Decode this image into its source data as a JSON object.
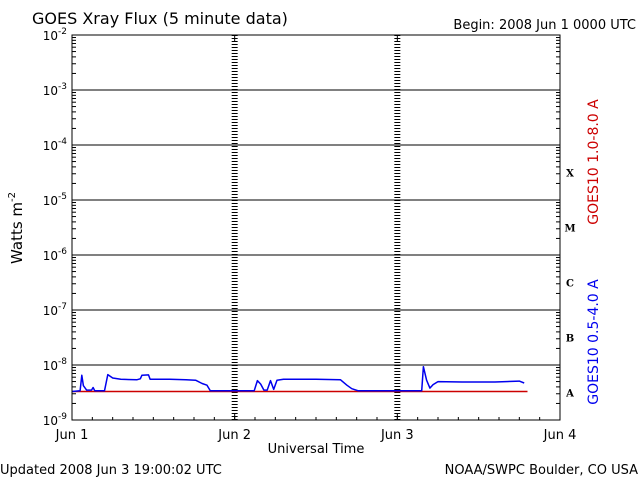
{
  "header": {
    "title": "GOES Xray Flux (5 minute data)",
    "begin": "Begin:  2008 Jun 1 0000 UTC"
  },
  "footer": {
    "updated": "Updated 2008 Jun  3 19:00:02 UTC",
    "source": "NOAA/SWPC Boulder, CO USA"
  },
  "chart_data": {
    "type": "line",
    "title": "GOES Xray Flux (5 minute data)",
    "xlabel": "Universal Time",
    "ylabel": "Watts m",
    "ylabel_sup": "-2",
    "yscale": "log",
    "ylim": [
      1e-09,
      0.01
    ],
    "xlim": [
      0,
      3
    ],
    "x_unit": "days since 2008 Jun 1 0000 UTC",
    "x_ticks": [
      {
        "x": 0,
        "label": "Jun 1"
      },
      {
        "x": 1,
        "label": "Jun 2"
      },
      {
        "x": 2,
        "label": "Jun 3"
      },
      {
        "x": 3,
        "label": "Jun 4"
      }
    ],
    "y_ticks": [
      {
        "exp": -2,
        "base": "10",
        "sup": "-2"
      },
      {
        "exp": -3,
        "base": "10",
        "sup": "-3"
      },
      {
        "exp": -4,
        "base": "10",
        "sup": "-4"
      },
      {
        "exp": -5,
        "base": "10",
        "sup": "-5"
      },
      {
        "exp": -6,
        "base": "10",
        "sup": "-6"
      },
      {
        "exp": -7,
        "base": "10",
        "sup": "-7"
      },
      {
        "exp": -8,
        "base": "10",
        "sup": "-8"
      },
      {
        "exp": -9,
        "base": "10",
        "sup": "-9"
      }
    ],
    "flare_classes": [
      {
        "label": "X",
        "exp": -4.5
      },
      {
        "label": "M",
        "exp": -5.5
      },
      {
        "label": "C",
        "exp": -6.5
      },
      {
        "label": "B",
        "exp": -7.5
      },
      {
        "label": "A",
        "exp": -8.5
      }
    ],
    "grid": "horizontal decade lines; dashed day separators",
    "series": [
      {
        "name": "GOES10 1.0-8.0 A",
        "color": "#cc0000",
        "points": [
          [
            0.0,
            3.3e-09
          ],
          [
            2.8,
            3.3e-09
          ]
        ]
      },
      {
        "name": "GOES10 0.5-4.0 A",
        "color": "#0000ee",
        "points": [
          [
            0.0,
            3.3e-09
          ],
          [
            0.05,
            3.4e-09
          ],
          [
            0.06,
            6.5e-09
          ],
          [
            0.07,
            4.2e-09
          ],
          [
            0.09,
            3.5e-09
          ],
          [
            0.12,
            3.5e-09
          ],
          [
            0.13,
            3.9e-09
          ],
          [
            0.14,
            3.4e-09
          ],
          [
            0.2,
            3.4e-09
          ],
          [
            0.22,
            6.7e-09
          ],
          [
            0.25,
            5.8e-09
          ],
          [
            0.3,
            5.5e-09
          ],
          [
            0.4,
            5.4e-09
          ],
          [
            0.42,
            5.6e-09
          ],
          [
            0.43,
            6.5e-09
          ],
          [
            0.47,
            6.6e-09
          ],
          [
            0.48,
            5.5e-09
          ],
          [
            0.6,
            5.5e-09
          ],
          [
            0.7,
            5.4e-09
          ],
          [
            0.76,
            5.3e-09
          ],
          [
            0.8,
            4.6e-09
          ],
          [
            0.83,
            4.3e-09
          ],
          [
            0.85,
            3.4e-09
          ],
          [
            0.98,
            3.4e-09
          ],
          [
            1.0,
            3.4e-09
          ],
          [
            1.12,
            3.4e-09
          ],
          [
            1.14,
            5.2e-09
          ],
          [
            1.16,
            4.5e-09
          ],
          [
            1.18,
            3.5e-09
          ],
          [
            1.2,
            3.5e-09
          ],
          [
            1.22,
            5.2e-09
          ],
          [
            1.24,
            3.6e-09
          ],
          [
            1.26,
            5.3e-09
          ],
          [
            1.3,
            5.5e-09
          ],
          [
            1.5,
            5.5e-09
          ],
          [
            1.65,
            5.4e-09
          ],
          [
            1.69,
            4.3e-09
          ],
          [
            1.72,
            3.7e-09
          ],
          [
            1.76,
            3.4e-09
          ],
          [
            1.98,
            3.4e-09
          ],
          [
            2.0,
            3.4e-09
          ],
          [
            2.15,
            3.4e-09
          ],
          [
            2.16,
            9.3e-09
          ],
          [
            2.18,
            5.3e-09
          ],
          [
            2.2,
            3.8e-09
          ],
          [
            2.22,
            4.4e-09
          ],
          [
            2.25,
            5e-09
          ],
          [
            2.4,
            4.9e-09
          ],
          [
            2.6,
            4.9e-09
          ],
          [
            2.75,
            5.1e-09
          ],
          [
            2.78,
            4.7e-09
          ]
        ]
      }
    ]
  }
}
